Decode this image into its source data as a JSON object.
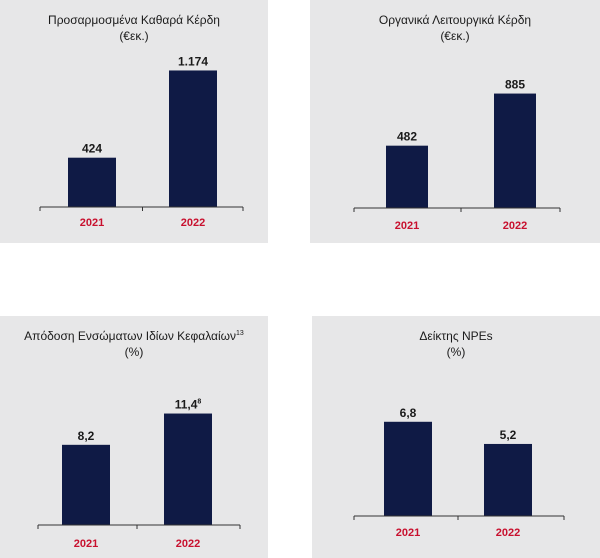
{
  "colors": {
    "bar": "#0f1a45",
    "category": "#c8102e",
    "panel": "#e7e7e8",
    "axis": "#333333"
  },
  "chart_data": [
    {
      "type": "bar",
      "title": "Προσαρμοσμένα Καθαρά Κέρδη",
      "subtitle": "(€εκ.)",
      "title_sup": "",
      "categories": [
        "2021",
        "2022"
      ],
      "values": [
        424,
        1174
      ],
      "value_labels": [
        "424",
        "1.174"
      ],
      "value_sups": [
        "",
        ""
      ],
      "ylim": [
        0,
        1350
      ]
    },
    {
      "type": "bar",
      "title": "Οργανικά Λειτουργικά Κέρδη",
      "subtitle": "(€εκ.)",
      "title_sup": "",
      "categories": [
        "2021",
        "2022"
      ],
      "values": [
        482,
        885
      ],
      "value_labels": [
        "482",
        "885"
      ],
      "value_sups": [
        "",
        ""
      ],
      "ylim": [
        0,
        1160
      ]
    },
    {
      "type": "bar",
      "title": "Απόδοση Ενσώματων Ιδίων Κεφαλαίων",
      "subtitle": "(%)",
      "title_sup": "13",
      "categories": [
        "2021",
        "2022"
      ],
      "values": [
        8.2,
        11.4
      ],
      "value_labels": [
        "8,2",
        "11,4"
      ],
      "value_sups": [
        "",
        "8"
      ],
      "ylim": [
        0,
        13.5
      ]
    },
    {
      "type": "bar",
      "title": "Δείκτης NPEs",
      "subtitle": "(%)",
      "title_sup": "",
      "categories": [
        "2021",
        "2022"
      ],
      "values": [
        6.8,
        5.2
      ],
      "value_labels": [
        "6,8",
        "5,2"
      ],
      "value_sups": [
        "",
        ""
      ],
      "ylim": [
        0,
        8.3
      ]
    }
  ]
}
